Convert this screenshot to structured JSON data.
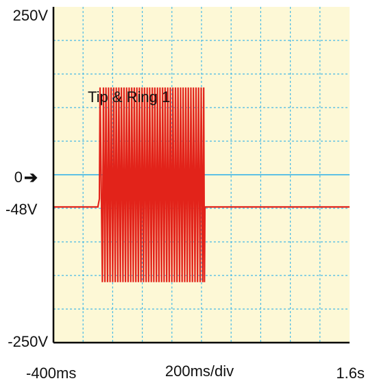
{
  "chart_data": {
    "type": "line",
    "title": "",
    "annotation": "Tip & Ring 1",
    "xlabel": "200ms/div",
    "x_start_label": "-400ms",
    "x_end_label": "1.6s",
    "x_unit": "ms",
    "xlim": [
      -400,
      1600
    ],
    "ylim": [
      -250,
      250
    ],
    "y_labels": {
      "top": "250V",
      "zero": "0",
      "offset": "-48V",
      "bottom": "-250V"
    },
    "zero_arrow": "➔",
    "grid": true,
    "x_divisions": 10,
    "y_divisions": 10,
    "colors": {
      "background": "#fdf8d6",
      "grid": "#46b9e6",
      "zero_line": "#46b9e6",
      "signal": "#e2231a",
      "axes": "#000000"
    },
    "series": [
      {
        "baseline_v": -48,
        "burst_start_ms": -80,
        "burst_end_ms": 615,
        "peak_v": 130,
        "trough_v": -160,
        "cycles": 20
      }
    ]
  }
}
